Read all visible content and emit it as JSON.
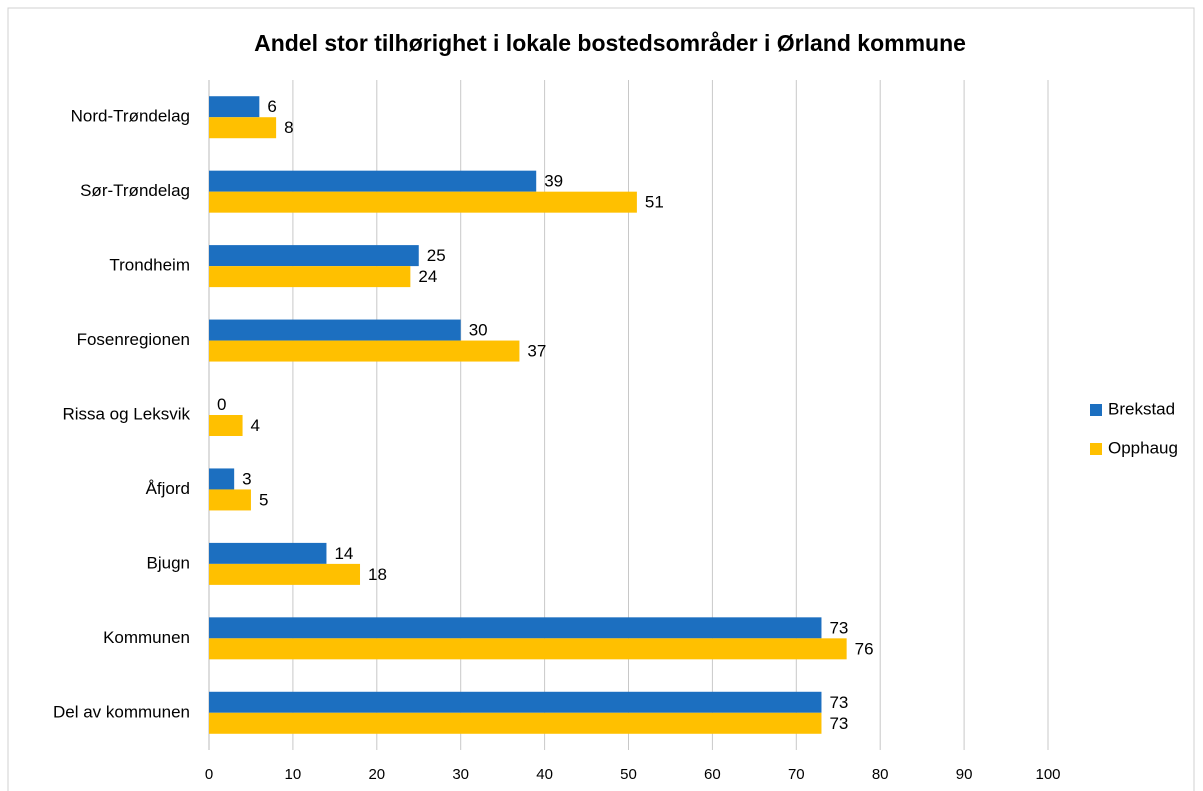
{
  "chart_data": {
    "type": "barh",
    "title": "Andel stor tilhørighet i lokale bostedsområder i Ørland kommune",
    "categories": [
      "Nord-Trøndelag",
      "Sør-Trøndelag",
      "Trondheim",
      "Fosenregionen",
      "Rissa og Leksvik",
      "Åfjord",
      "Bjugn",
      "Kommunen",
      "Del av kommunen"
    ],
    "series": [
      {
        "name": "Brekstad",
        "color": "#1c6fc0",
        "values": [
          6,
          39,
          25,
          30,
          0,
          3,
          14,
          73,
          73
        ]
      },
      {
        "name": "Opphaug",
        "color": "#ffc000",
        "values": [
          8,
          51,
          24,
          37,
          4,
          5,
          18,
          76,
          73
        ]
      }
    ],
    "xlim": [
      0,
      100
    ],
    "xticks": [
      0,
      10,
      20,
      30,
      40,
      50,
      60,
      70,
      80,
      90,
      100
    ],
    "grid": true,
    "legend": "right"
  }
}
